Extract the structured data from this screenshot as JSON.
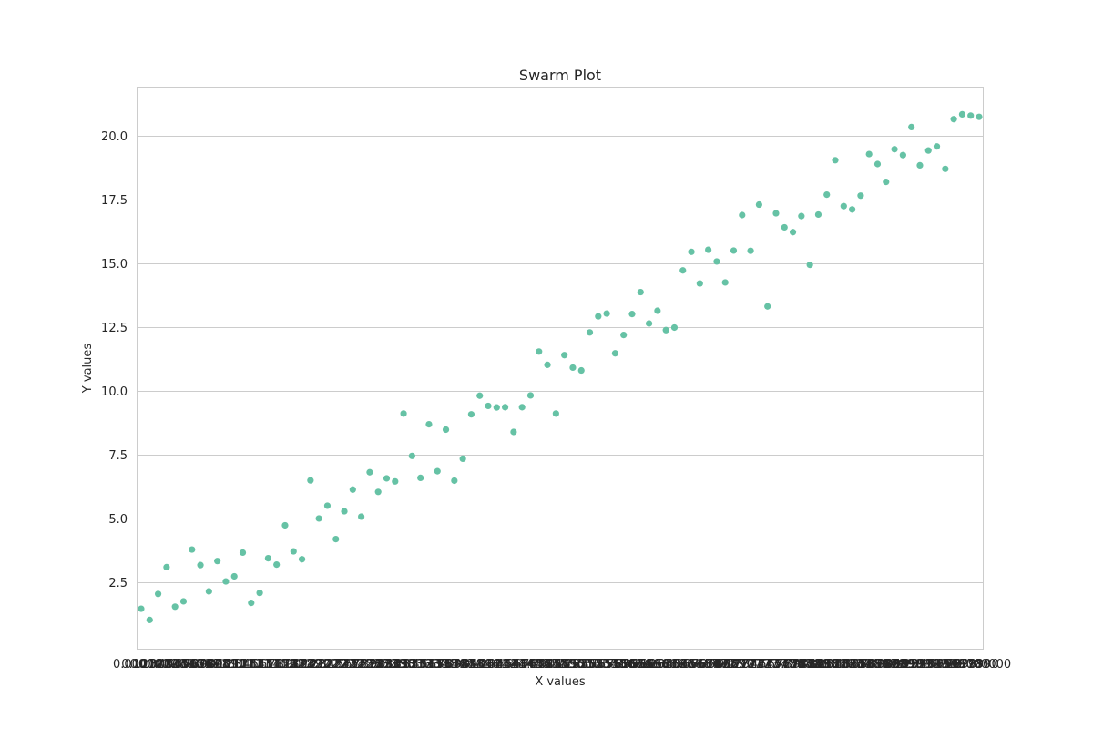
{
  "chart_data": {
    "type": "scatter",
    "title": "Swarm Plot",
    "xlabel": "X values",
    "ylabel": "Y values",
    "ylim": [
      -0.1,
      21.9
    ],
    "yticks": [
      "2.5",
      "5.0",
      "7.5",
      "10.0",
      "12.5",
      "15.0",
      "17.5",
      "20.0"
    ],
    "xtick_first": "0.000000",
    "xtick_last": "10.000000",
    "x_count": 100,
    "grid": "horizontal",
    "marker_color": "#66c2a5",
    "values": [
      1.47,
      1.03,
      2.05,
      3.1,
      1.55,
      1.76,
      3.79,
      3.18,
      2.15,
      3.34,
      2.54,
      2.74,
      3.67,
      1.7,
      2.09,
      3.45,
      3.2,
      4.74,
      3.72,
      3.41,
      6.5,
      5.01,
      5.51,
      4.2,
      5.29,
      6.14,
      5.08,
      6.82,
      6.05,
      6.58,
      6.46,
      9.12,
      7.46,
      6.6,
      8.7,
      6.86,
      8.49,
      6.49,
      7.35,
      9.09,
      9.82,
      9.42,
      9.36,
      9.37,
      8.4,
      9.37,
      9.83,
      11.55,
      11.03,
      9.12,
      11.41,
      10.92,
      10.81,
      12.3,
      12.93,
      13.04,
      11.48,
      12.2,
      13.02,
      13.88,
      12.65,
      13.15,
      12.39,
      12.49,
      14.73,
      15.46,
      14.22,
      15.54,
      15.08,
      14.26,
      15.51,
      16.9,
      15.5,
      17.31,
      13.32,
      16.97,
      16.42,
      16.23,
      16.86,
      14.95,
      16.92,
      17.7,
      19.05,
      17.25,
      17.12,
      17.66,
      19.29,
      18.9,
      18.2,
      19.48,
      19.25,
      20.35,
      18.85,
      19.43,
      19.59,
      18.71,
      20.66,
      20.85,
      20.8,
      20.75
    ]
  }
}
